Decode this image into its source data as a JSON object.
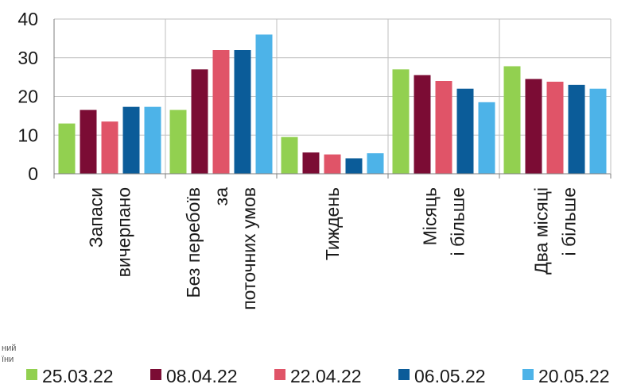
{
  "chart_data": {
    "type": "bar",
    "categories": [
      [
        "Запаси",
        "вичерпано"
      ],
      [
        "Без перебоїв",
        "за",
        "поточних умов"
      ],
      [
        "Тиждень"
      ],
      [
        "Місяць",
        "і більше"
      ],
      [
        "Два місяці",
        "і більше"
      ]
    ],
    "series": [
      {
        "name": "25.03.22",
        "color": "#92d050",
        "values": [
          13,
          16.5,
          9.5,
          27,
          27.8
        ]
      },
      {
        "name": "08.04.22",
        "color": "#7b0c34",
        "values": [
          16.5,
          27,
          5.5,
          25.5,
          24.5
        ]
      },
      {
        "name": "22.04.22",
        "color": "#e05468",
        "values": [
          13.5,
          32,
          5,
          24,
          23.8
        ]
      },
      {
        "name": "06.05.22",
        "color": "#0b5c99",
        "values": [
          17.3,
          32,
          4,
          22,
          23
        ]
      },
      {
        "name": "20.05.22",
        "color": "#4db3e8",
        "values": [
          17.3,
          36,
          5.3,
          18.5,
          22
        ]
      }
    ],
    "ylim": [
      0,
      40
    ],
    "yticks": [
      "0",
      "10",
      "20",
      "30",
      "40"
    ],
    "grid": true,
    "legend_position": "bottom"
  },
  "footnote": [
    "ний",
    "їни"
  ]
}
